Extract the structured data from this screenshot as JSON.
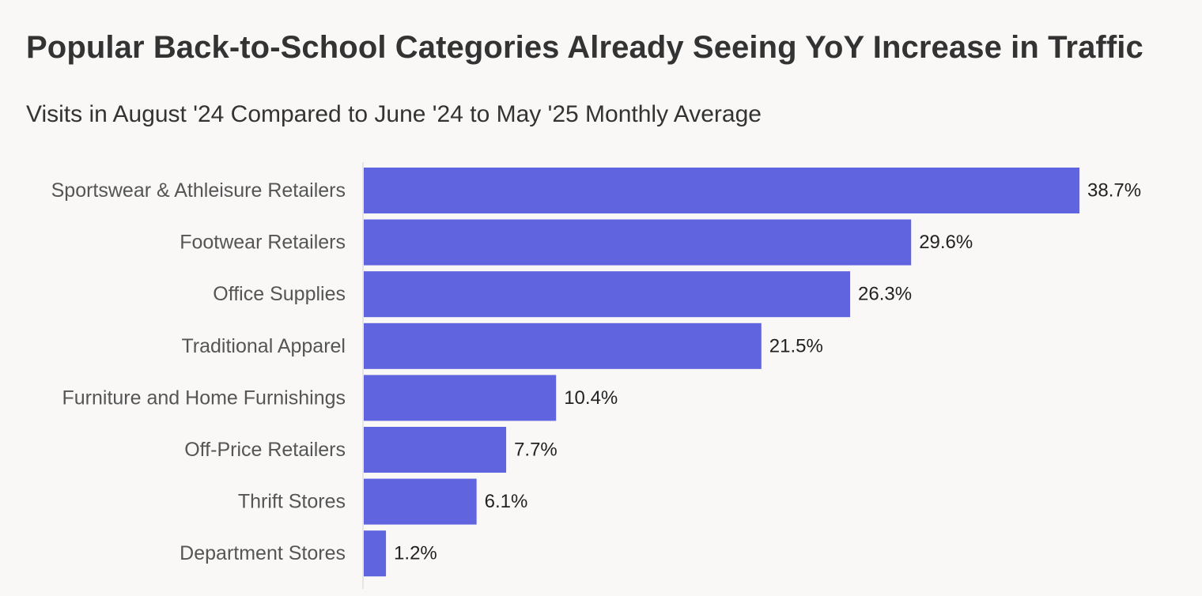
{
  "chart_data": {
    "type": "bar",
    "orientation": "horizontal",
    "title": "Popular Back-to-School Categories Already Seeing YoY Increase in Traffic",
    "subtitle": "Visits in August '24 Compared to June '24 to May '25 Monthly Average",
    "categories": [
      "Sportswear & Athleisure Retailers",
      "Footwear Retailers",
      "Office Supplies",
      "Traditional Apparel",
      "Furniture and Home Furnishings",
      "Off-Price Retailers",
      "Thrift Stores",
      "Department Stores"
    ],
    "values": [
      38.7,
      29.6,
      26.3,
      21.5,
      10.4,
      7.7,
      6.1,
      1.2
    ],
    "value_labels": [
      "38.7%",
      "29.6%",
      "26.3%",
      "21.5%",
      "10.4%",
      "7.7%",
      "6.1%",
      "1.2%"
    ],
    "xlim": [
      0,
      38.7
    ],
    "bar_color": "#6064df",
    "grid": false,
    "legend": "none"
  }
}
